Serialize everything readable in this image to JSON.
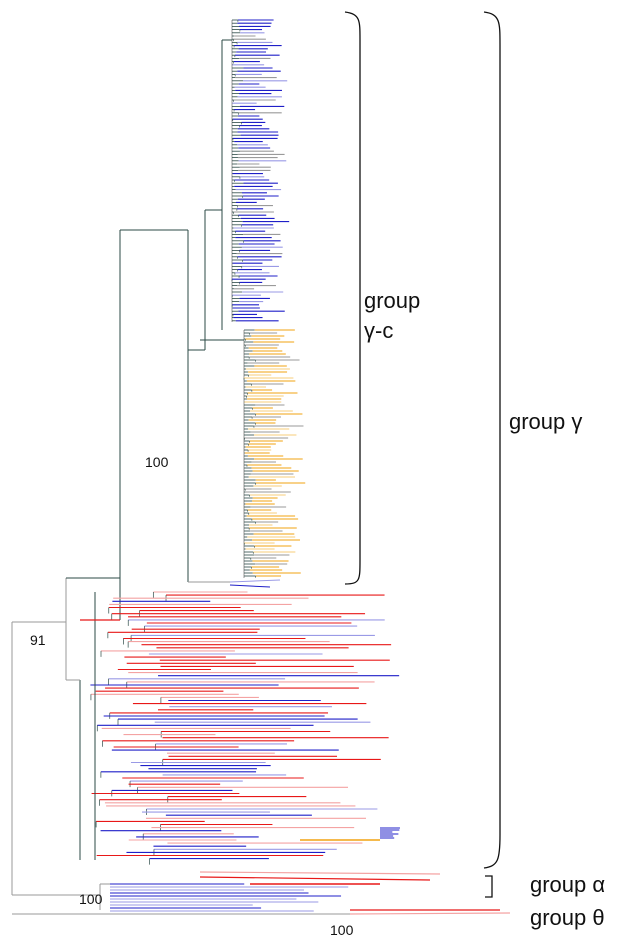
{
  "groups": {
    "gamma_c": {
      "line1": "group",
      "line2": "γ-c"
    },
    "gamma": "group γ",
    "alpha": "group α",
    "theta": "group θ"
  },
  "bootstrap": {
    "gamma_c": "100",
    "gamma_inner": "91",
    "alpha": "100",
    "theta": "100"
  },
  "colors": {
    "blue": "#1f1fc8",
    "light_blue": "#9a9ae6",
    "orange": "#f2a312",
    "light_orange": "#f7cd7a",
    "red": "#e81818",
    "pink": "#f4a3a3",
    "dark_teal": "#2b4a46",
    "grey": "#9a9a9a"
  }
}
